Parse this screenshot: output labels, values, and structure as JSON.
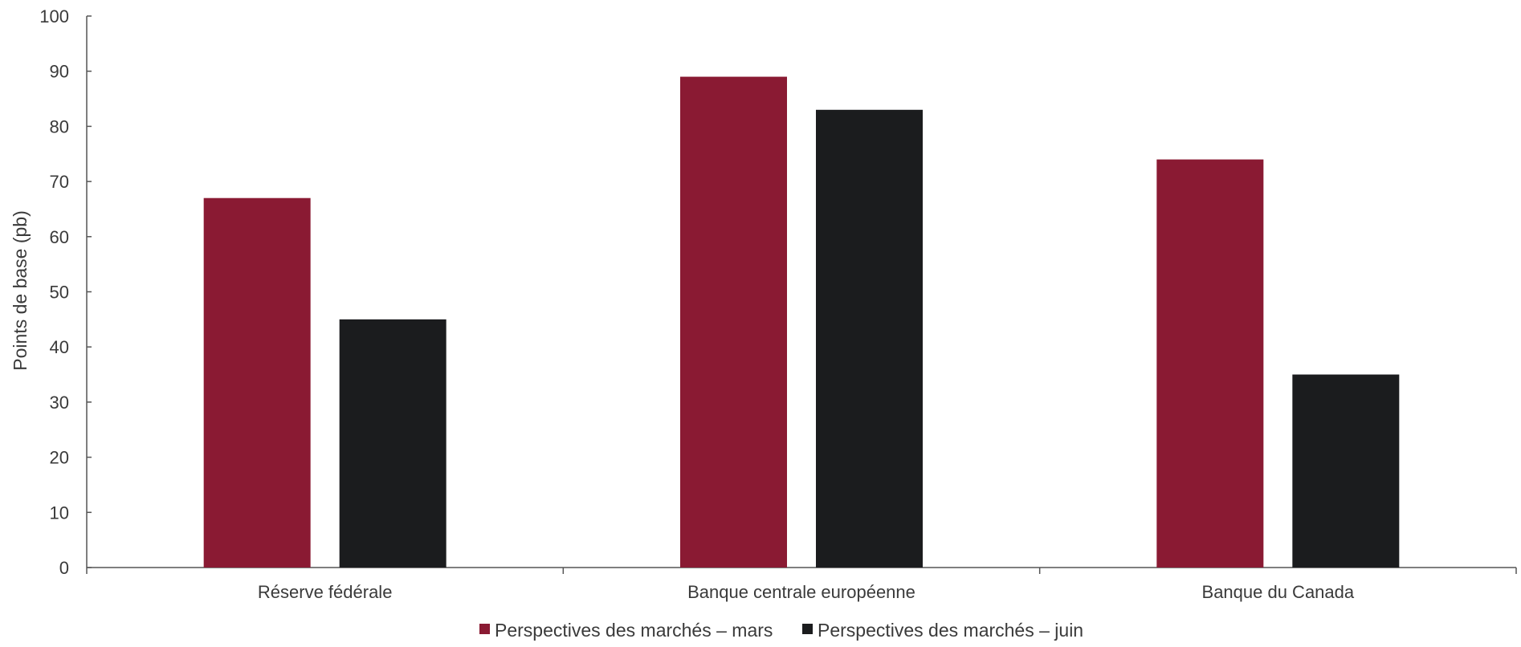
{
  "chart_data": {
    "type": "bar",
    "categories": [
      "Réserve fédérale",
      "Banque centrale européenne",
      "Banque du Canada"
    ],
    "series": [
      {
        "name": "Perspectives des marchés – mars",
        "values": [
          67,
          89,
          74
        ],
        "color": "#8a1a33"
      },
      {
        "name": "Perspectives des marchés – juin",
        "values": [
          45,
          83,
          35
        ],
        "color": "#1b1c1e"
      }
    ],
    "title": "",
    "xlabel": "",
    "ylabel": "Points de base (pb)",
    "ylim": [
      0,
      100
    ],
    "yticks": [
      0,
      10,
      20,
      30,
      40,
      50,
      60,
      70,
      80,
      90,
      100
    ],
    "ytick_labels": [
      "0",
      "10",
      "20",
      "30",
      "40",
      "50",
      "60",
      "70",
      "80",
      "90",
      "100"
    ],
    "grid": false,
    "legend_position": "bottom-center"
  }
}
